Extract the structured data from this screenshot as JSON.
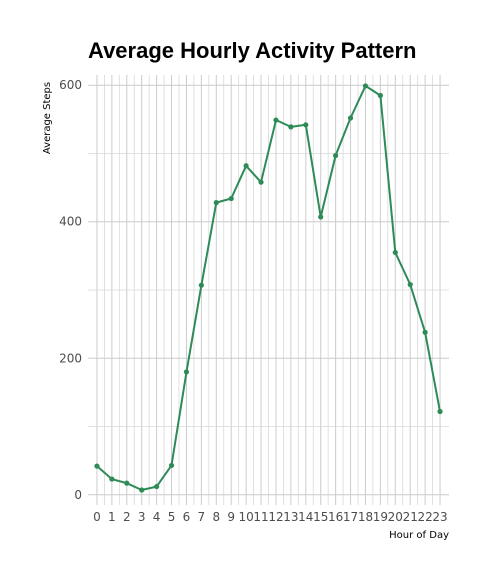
{
  "chart_data": {
    "type": "line",
    "title": "Average Hourly Activity Pattern",
    "xlabel": "Hour of Day",
    "ylabel": "Average Steps",
    "x": [
      0,
      1,
      2,
      3,
      4,
      5,
      6,
      7,
      8,
      9,
      10,
      11,
      12,
      13,
      14,
      15,
      16,
      17,
      18,
      19,
      20,
      21,
      22,
      23
    ],
    "values": [
      42,
      23,
      17,
      7,
      12,
      43,
      180,
      307,
      428,
      434,
      482,
      458,
      549,
      539,
      542,
      407,
      497,
      552,
      599,
      585,
      355,
      308,
      238,
      122
    ],
    "xlim": [
      -0.6,
      23.6
    ],
    "ylim": [
      -15,
      615
    ],
    "yticks": [
      0,
      200,
      400,
      600
    ],
    "grid": true,
    "line_color": "#2e8b57",
    "grid_color": "#cccccc"
  }
}
